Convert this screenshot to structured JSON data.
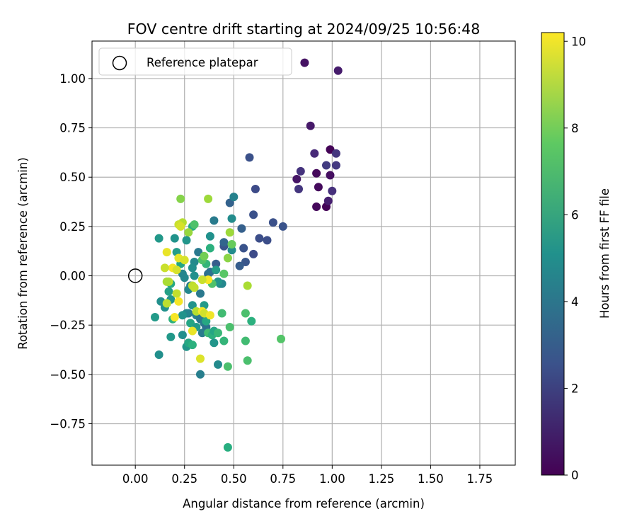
{
  "chart_data": {
    "type": "scatter",
    "title": "FOV centre drift starting at 2024/09/25 10:56:48",
    "xlabel": "Angular distance from reference (arcmin)",
    "ylabel": "Rotation from reference (arcmin)",
    "xlim": [
      -0.22,
      1.93
    ],
    "ylim": [
      -0.96,
      1.19
    ],
    "xticks": [
      0.0,
      0.25,
      0.5,
      0.75,
      1.0,
      1.25,
      1.5,
      1.75
    ],
    "xtick_labels": [
      "0.00",
      "0.25",
      "0.50",
      "0.75",
      "1.00",
      "1.25",
      "1.50",
      "1.75"
    ],
    "yticks": [
      -0.75,
      -0.5,
      -0.25,
      0.0,
      0.25,
      0.5,
      0.75,
      1.0
    ],
    "ytick_labels": [
      "−0.75",
      "−0.50",
      "−0.25",
      "0.00",
      "0.25",
      "0.50",
      "0.75",
      "1.00"
    ],
    "grid": true,
    "colormap": "viridis",
    "colorbar": {
      "label": "Hours from first FF file",
      "range": [
        0,
        10.2
      ],
      "ticks": [
        0,
        2,
        4,
        6,
        8,
        10
      ],
      "tick_labels": [
        "0",
        "2",
        "4",
        "6",
        "8",
        "10"
      ]
    },
    "legend": {
      "placement": "upper-left",
      "entries": [
        "Reference platepar"
      ]
    },
    "reference_point": {
      "x": 0.0,
      "y": 0.0
    },
    "points": [
      [
        0.86,
        1.08,
        0.5
      ],
      [
        1.03,
        1.04,
        0.8
      ],
      [
        0.89,
        0.76,
        0.7
      ],
      [
        0.91,
        0.62,
        1.2
      ],
      [
        0.99,
        0.64,
        0.1
      ],
      [
        1.02,
        0.62,
        1.6
      ],
      [
        0.84,
        0.53,
        1.5
      ],
      [
        0.92,
        0.52,
        0.2
      ],
      [
        0.97,
        0.56,
        1.8
      ],
      [
        0.99,
        0.51,
        0.4
      ],
      [
        1.02,
        0.56,
        1.7
      ],
      [
        0.82,
        0.49,
        0.6
      ],
      [
        0.83,
        0.44,
        1.6
      ],
      [
        0.93,
        0.45,
        0.3
      ],
      [
        1.0,
        0.43,
        1.4
      ],
      [
        0.92,
        0.35,
        0.2
      ],
      [
        0.97,
        0.35,
        0.1
      ],
      [
        0.98,
        0.38,
        0.9
      ],
      [
        0.58,
        0.6,
        2.5
      ],
      [
        0.61,
        0.44,
        2.3
      ],
      [
        0.6,
        0.31,
        2.5
      ],
      [
        0.7,
        0.27,
        2.5
      ],
      [
        0.75,
        0.25,
        2.6
      ],
      [
        0.63,
        0.19,
        2.4
      ],
      [
        0.67,
        0.18,
        2.4
      ],
      [
        0.54,
        0.24,
        3.1
      ],
      [
        0.55,
        0.14,
        2.6
      ],
      [
        0.6,
        0.11,
        2.3
      ],
      [
        0.56,
        0.07,
        2.7
      ],
      [
        0.53,
        0.05,
        3.0
      ],
      [
        0.48,
        0.37,
        3.2
      ],
      [
        0.5,
        0.4,
        4.5
      ],
      [
        0.49,
        0.29,
        4.9
      ],
      [
        0.4,
        0.28,
        4.2
      ],
      [
        0.45,
        0.15,
        2.6
      ],
      [
        0.45,
        0.17,
        3.3
      ],
      [
        0.49,
        0.13,
        4.9
      ],
      [
        0.41,
        0.06,
        3.0
      ],
      [
        0.37,
        0.01,
        3.6
      ],
      [
        0.38,
        0.02,
        3.8
      ],
      [
        0.32,
        0.12,
        4.1
      ],
      [
        0.3,
        0.07,
        4.8
      ],
      [
        0.3,
        0.0,
        5.1
      ],
      [
        0.29,
        0.04,
        5.0
      ],
      [
        0.28,
        -0.05,
        4.3
      ],
      [
        0.27,
        -0.07,
        4.7
      ],
      [
        0.25,
        -0.01,
        4.7
      ],
      [
        0.24,
        0.01,
        4.6
      ],
      [
        0.2,
        0.19,
        5.2
      ],
      [
        0.21,
        0.12,
        5.6
      ],
      [
        0.23,
        0.06,
        6.0
      ],
      [
        0.12,
        0.19,
        5.4
      ],
      [
        0.18,
        -0.04,
        6.2
      ],
      [
        0.17,
        -0.08,
        5.8
      ],
      [
        0.18,
        -0.12,
        5.3
      ],
      [
        0.13,
        -0.13,
        5.0
      ],
      [
        0.15,
        -0.16,
        5.1
      ],
      [
        0.16,
        -0.14,
        5.4
      ],
      [
        0.1,
        -0.21,
        5.5
      ],
      [
        0.19,
        -0.22,
        6.5
      ],
      [
        0.27,
        -0.19,
        4.1
      ],
      [
        0.29,
        -0.15,
        5.2
      ],
      [
        0.31,
        -0.2,
        4.4
      ],
      [
        0.33,
        -0.22,
        4.0
      ],
      [
        0.35,
        -0.24,
        4.2
      ],
      [
        0.36,
        -0.26,
        3.8
      ],
      [
        0.34,
        -0.29,
        4.2
      ],
      [
        0.28,
        -0.24,
        6.0
      ],
      [
        0.26,
        -0.19,
        4.6
      ],
      [
        0.24,
        -0.2,
        5.2
      ],
      [
        0.24,
        -0.3,
        5.0
      ],
      [
        0.18,
        -0.31,
        5.4
      ],
      [
        0.12,
        -0.4,
        5.0
      ],
      [
        0.26,
        -0.36,
        5.3
      ],
      [
        0.27,
        -0.34,
        6.1
      ],
      [
        0.29,
        -0.35,
        6.5
      ],
      [
        0.31,
        -0.26,
        5.5
      ],
      [
        0.33,
        -0.5,
        4.3
      ],
      [
        0.33,
        -0.09,
        4.1
      ],
      [
        0.35,
        -0.15,
        5.5
      ],
      [
        0.36,
        -0.23,
        6.1
      ],
      [
        0.37,
        -0.29,
        7.0
      ],
      [
        0.39,
        -0.3,
        6.5
      ],
      [
        0.4,
        -0.28,
        6.0
      ],
      [
        0.4,
        -0.34,
        5.3
      ],
      [
        0.42,
        -0.45,
        4.8
      ],
      [
        0.42,
        -0.29,
        6.8
      ],
      [
        0.44,
        -0.19,
        7.0
      ],
      [
        0.45,
        -0.33,
        6.7
      ],
      [
        0.48,
        -0.26,
        7.2
      ],
      [
        0.47,
        -0.46,
        7.2
      ],
      [
        0.43,
        -0.04,
        5.1
      ],
      [
        0.44,
        -0.04,
        4.7
      ],
      [
        0.42,
        -0.03,
        5.3
      ],
      [
        0.38,
        0.14,
        6.5
      ],
      [
        0.38,
        0.2,
        5.1
      ],
      [
        0.36,
        0.06,
        6.7
      ],
      [
        0.34,
        0.08,
        7.3
      ],
      [
        0.35,
        0.1,
        8.0
      ],
      [
        0.41,
        0.03,
        5.6
      ],
      [
        0.39,
        -0.04,
        7.3
      ],
      [
        0.45,
        0.01,
        7.5
      ],
      [
        0.47,
        0.09,
        8.4
      ],
      [
        0.48,
        0.22,
        8.7
      ],
      [
        0.49,
        0.16,
        7.8
      ],
      [
        0.57,
        -0.05,
        8.9
      ],
      [
        0.56,
        -0.19,
        7.2
      ],
      [
        0.59,
        -0.23,
        6.5
      ],
      [
        0.56,
        -0.33,
        7.0
      ],
      [
        0.57,
        -0.43,
        7.2
      ],
      [
        0.74,
        -0.32,
        7.4
      ],
      [
        0.47,
        -0.87,
        6.4
      ],
      [
        0.37,
        0.39,
        8.7
      ],
      [
        0.23,
        0.39,
        8.3
      ],
      [
        0.29,
        0.25,
        6.3
      ],
      [
        0.3,
        0.26,
        7.3
      ],
      [
        0.27,
        0.22,
        8.6
      ],
      [
        0.24,
        0.27,
        9.1
      ],
      [
        0.22,
        0.26,
        9.4
      ],
      [
        0.23,
        0.25,
        9.6
      ],
      [
        0.26,
        0.18,
        5.3
      ],
      [
        0.16,
        0.12,
        9.9
      ],
      [
        0.22,
        0.09,
        9.8
      ],
      [
        0.25,
        0.08,
        9.6
      ],
      [
        0.19,
        0.04,
        10.1
      ],
      [
        0.15,
        0.04,
        9.4
      ],
      [
        0.21,
        0.03,
        9.6
      ],
      [
        0.17,
        -0.03,
        9.2
      ],
      [
        0.16,
        -0.03,
        8.9
      ],
      [
        0.21,
        -0.09,
        9.3
      ],
      [
        0.22,
        -0.13,
        10.1
      ],
      [
        0.16,
        -0.14,
        9.2
      ],
      [
        0.2,
        -0.21,
        10.1
      ],
      [
        0.29,
        -0.05,
        9.2
      ],
      [
        0.3,
        -0.06,
        9.3
      ],
      [
        0.31,
        -0.18,
        9.1
      ],
      [
        0.34,
        -0.18,
        10.1
      ],
      [
        0.35,
        -0.19,
        9.5
      ],
      [
        0.38,
        -0.2,
        10.0
      ],
      [
        0.37,
        -0.02,
        10.1
      ],
      [
        0.29,
        -0.28,
        9.9
      ],
      [
        0.33,
        -0.42,
        9.7
      ],
      [
        0.34,
        -0.02,
        9.4
      ]
    ]
  }
}
